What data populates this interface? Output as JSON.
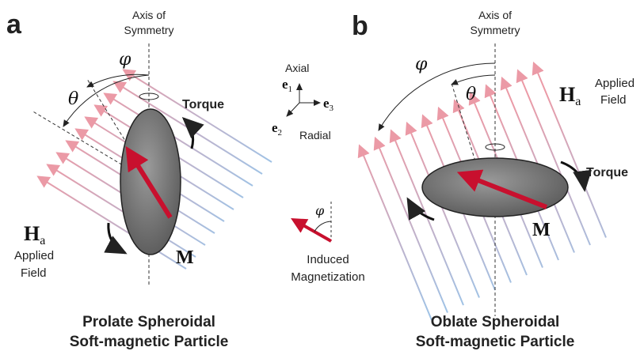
{
  "panels": [
    {
      "label": "a",
      "axis_label": [
        "Axis of",
        "Symmetry"
      ],
      "phi": "φ",
      "theta": "θ",
      "torque": "Torque",
      "field_symbol": "H",
      "field_subscript": "a",
      "field_label": [
        "Applied",
        "Field"
      ],
      "moment": "M",
      "caption": [
        "Prolate Spheroidal",
        "Soft-magnetic Particle"
      ]
    },
    {
      "label": "b",
      "axis_label": [
        "Axis of",
        "Symmetry"
      ],
      "phi": "φ",
      "theta": "θ",
      "torque": "Torque",
      "field_symbol": "H",
      "field_subscript": "a",
      "field_label": [
        "Applied",
        "Field"
      ],
      "moment": "M",
      "caption": [
        "Oblate Spheroidal",
        "Soft-magnetic Particle"
      ]
    }
  ],
  "basis": {
    "axial": "Axial",
    "radial": "Radial",
    "e1": {
      "symbol": "e",
      "subscript": "1"
    },
    "e2": {
      "symbol": "e",
      "subscript": "2"
    },
    "e3": {
      "symbol": "e",
      "subscript": "3"
    }
  },
  "legend": {
    "symbol": "φ",
    "label": [
      "Induced",
      "Magnetization"
    ]
  }
}
